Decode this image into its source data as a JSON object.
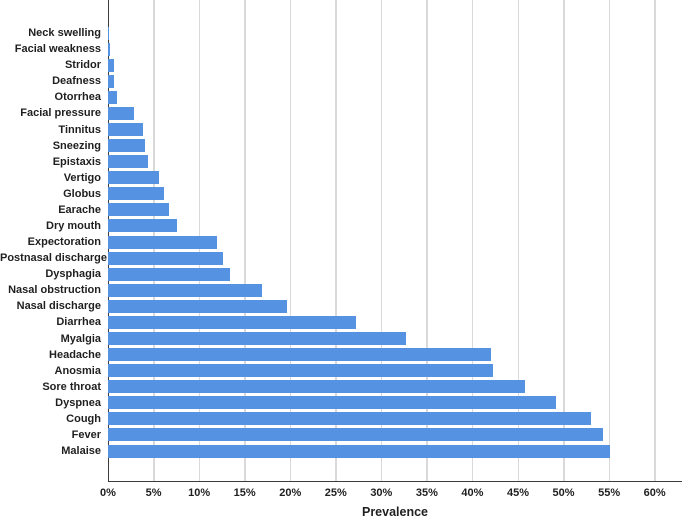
{
  "figure": {
    "x_axis_title": "Prevalence"
  },
  "chart_data": {
    "type": "bar",
    "orientation": "horizontal",
    "title": "",
    "xlabel": "Prevalence",
    "ylabel": "",
    "xlim": [
      0,
      63
    ],
    "grid": true,
    "bar_color": "#5593e2",
    "gridline_color": "#d9d9d9",
    "axis_line_color": "#3c3c3c",
    "x_ticks": [
      0,
      5,
      10,
      15,
      20,
      25,
      30,
      35,
      40,
      45,
      50,
      55,
      60
    ],
    "x_tick_labels": [
      "0%",
      "5%",
      "10%",
      "15%",
      "20%",
      "25%",
      "30%",
      "35%",
      "40%",
      "45%",
      "50%",
      "55%",
      "60%"
    ],
    "categories": [
      "Neck swelling",
      "Facial weakness",
      "Stridor",
      "Deafness",
      "Otorrhea",
      "Facial pressure",
      "Tinnitus",
      "Sneezing",
      "Epistaxis",
      "Vertigo",
      "Globus",
      "Earache",
      "Dry mouth",
      "Expectoration",
      "Postnasal discharge",
      "Dysphagia",
      "Nasal obstruction",
      "Nasal discharge",
      "Diarrhea",
      "Myalgia",
      "Headache",
      "Anosmia",
      "Sore throat",
      "Dyspnea",
      "Cough",
      "Fever",
      "Malaise"
    ],
    "values": [
      0.1,
      0.2,
      0.7,
      0.7,
      1.0,
      2.9,
      3.8,
      4.1,
      4.4,
      5.6,
      6.1,
      6.7,
      7.6,
      12.0,
      12.6,
      13.4,
      16.9,
      19.7,
      27.2,
      32.7,
      42.0,
      42.3,
      45.8,
      49.2,
      53.0,
      54.3,
      55.1
    ]
  }
}
